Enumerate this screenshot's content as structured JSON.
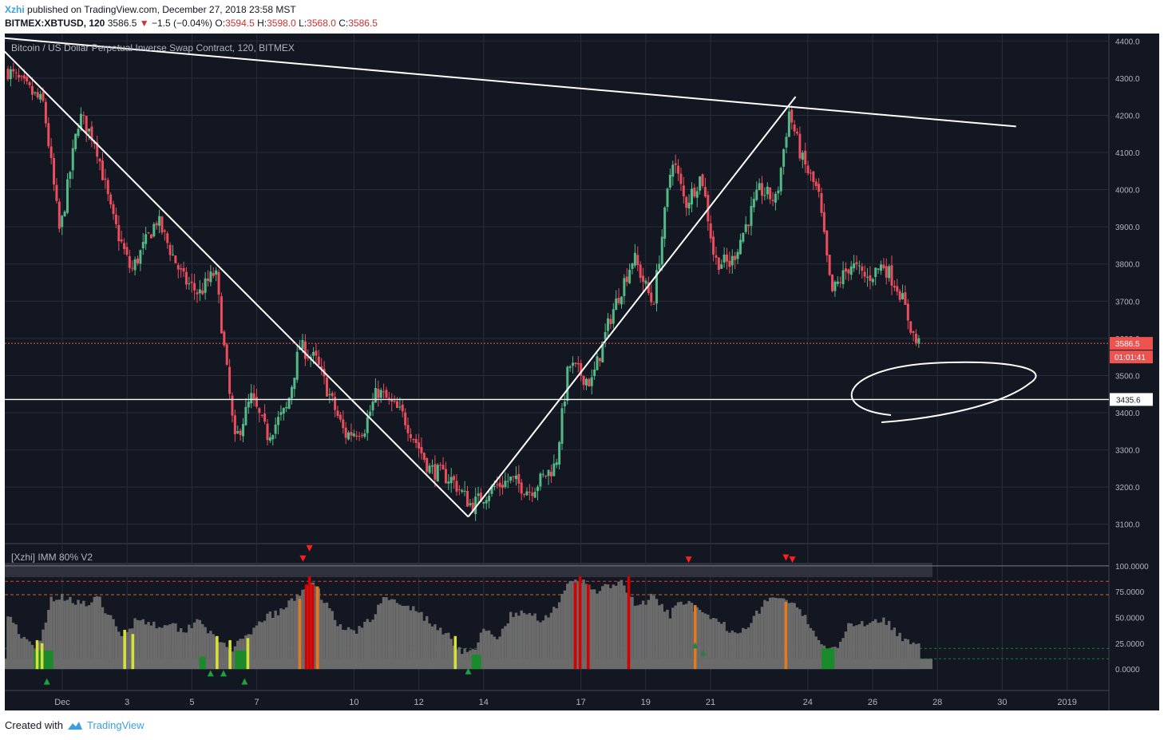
{
  "header": {
    "author": "Xzhi",
    "published_text": "published on TradingView.com, December 27, 2018 23:58 MST",
    "symbol": "BITMEX:XBTUSD, 120",
    "last": "3586.5",
    "change_arrow": "▼",
    "change": "−1.5 (−0.04%)",
    "o_label": "O:",
    "o_value": "3594.5",
    "h_label": "H:",
    "h_value": "3598.0",
    "l_label": "L:",
    "l_value": "3568.0",
    "c_label": "C:",
    "c_value": "3586.5"
  },
  "footer": {
    "created_with": "Created with",
    "brand": "TradingView",
    "logo_icon": "tradingview-cloud-icon"
  },
  "colors": {
    "background": "#131722",
    "grid": "#2a2e39",
    "up": "#53b987",
    "down": "#eb4d5c",
    "axis_text": "#b2b5be",
    "price_tag": "#ef5350",
    "indicator_gray": "#6b6b6b",
    "bar_yellow": "#d7e03b",
    "bar_orange": "#e37a1f",
    "bar_red": "#d50000",
    "bar_green": "#1b8a2a"
  },
  "chart_data": [
    {
      "type": "candlestick",
      "title": "Bitcoin / US Dollar Perpetual Inverse Swap Contract, 120, BITMEX",
      "xlabel": "",
      "ylabel": "",
      "x_ticks": [
        "Dec",
        "3",
        "5",
        "7",
        "10",
        "12",
        "14",
        "17",
        "19",
        "21",
        "24",
        "26",
        "28",
        "30",
        "2019"
      ],
      "y_ticks": [
        "4400.0",
        "4300.0",
        "4200.0",
        "4100.0",
        "4000.0",
        "3900.0",
        "3800.0",
        "3700.0",
        "3600.0",
        "3500.0",
        "3400.0",
        "3300.0",
        "3200.0",
        "3100.0"
      ],
      "ylim": [
        3050,
        4420
      ],
      "grid": true,
      "current_price_label": "3586.5",
      "countdown_label": "01:01:41",
      "horizontal_level": 3435.6,
      "horizontal_level_label": "3435.6",
      "anchors": [
        {
          "d": 0.0,
          "p": 4320
        },
        {
          "d": 1.1,
          "p": 4230
        },
        {
          "d": 1.6,
          "p": 3880
        },
        {
          "d": 2.2,
          "p": 4200
        },
        {
          "d": 2.7,
          "p": 4130
        },
        {
          "d": 3.2,
          "p": 3930
        },
        {
          "d": 3.8,
          "p": 3780
        },
        {
          "d": 4.6,
          "p": 3920
        },
        {
          "d": 5.4,
          "p": 3760
        },
        {
          "d": 5.9,
          "p": 3720
        },
        {
          "d": 6.4,
          "p": 3780
        },
        {
          "d": 7.0,
          "p": 3320
        },
        {
          "d": 7.5,
          "p": 3440
        },
        {
          "d": 8.0,
          "p": 3340
        },
        {
          "d": 8.6,
          "p": 3410
        },
        {
          "d": 9.0,
          "p": 3580
        },
        {
          "d": 9.5,
          "p": 3540
        },
        {
          "d": 10.4,
          "p": 3340
        },
        {
          "d": 11.0,
          "p": 3360
        },
        {
          "d": 11.4,
          "p": 3460
        },
        {
          "d": 12.2,
          "p": 3390
        },
        {
          "d": 13.0,
          "p": 3250
        },
        {
          "d": 13.7,
          "p": 3220
        },
        {
          "d": 14.3,
          "p": 3150
        },
        {
          "d": 15.0,
          "p": 3200
        },
        {
          "d": 15.5,
          "p": 3220
        },
        {
          "d": 16.1,
          "p": 3190
        },
        {
          "d": 16.9,
          "p": 3260
        },
        {
          "d": 17.3,
          "p": 3530
        },
        {
          "d": 18.0,
          "p": 3480
        },
        {
          "d": 18.6,
          "p": 3660
        },
        {
          "d": 19.3,
          "p": 3820
        },
        {
          "d": 19.9,
          "p": 3690
        },
        {
          "d": 20.5,
          "p": 4090
        },
        {
          "d": 20.9,
          "p": 3960
        },
        {
          "d": 21.4,
          "p": 4040
        },
        {
          "d": 21.8,
          "p": 3810
        },
        {
          "d": 22.3,
          "p": 3800
        },
        {
          "d": 22.7,
          "p": 3890
        },
        {
          "d": 23.2,
          "p": 4000
        },
        {
          "d": 23.7,
          "p": 3970
        },
        {
          "d": 24.1,
          "p": 4210
        },
        {
          "d": 24.5,
          "p": 4080
        },
        {
          "d": 25.0,
          "p": 3990
        },
        {
          "d": 25.4,
          "p": 3720
        },
        {
          "d": 26.0,
          "p": 3800
        },
        {
          "d": 26.5,
          "p": 3760
        },
        {
          "d": 27.0,
          "p": 3800
        },
        {
          "d": 27.5,
          "p": 3730
        },
        {
          "d": 28.0,
          "p": 3590
        },
        {
          "d": 28.1,
          "p": 3586.5
        }
      ],
      "trendlines": [
        {
          "d1": -0.4,
          "p1": 4410,
          "d2": 31.1,
          "p2": 4170
        },
        {
          "d1": -0.2,
          "p1": 4380,
          "d2": 14.2,
          "p2": 3120
        },
        {
          "d1": 14.2,
          "p1": 3120,
          "d2": 24.3,
          "p2": 4250
        }
      ]
    },
    {
      "type": "area",
      "title": "[Xzhi] IMM 80% V2",
      "y_ticks": [
        "100.0000",
        "75.0000",
        "50.0000",
        "25.0000",
        "0.0000"
      ],
      "ylim": [
        -20,
        120
      ],
      "levels": [
        100,
        85,
        72,
        20,
        10
      ],
      "anchors": [
        {
          "d": 0.0,
          "v": 55
        },
        {
          "d": 0.5,
          "v": 28
        },
        {
          "d": 0.8,
          "v": 20
        },
        {
          "d": 1.0,
          "v": 25
        },
        {
          "d": 1.3,
          "v": 68
        },
        {
          "d": 1.8,
          "v": 70
        },
        {
          "d": 2.4,
          "v": 62
        },
        {
          "d": 2.8,
          "v": 68
        },
        {
          "d": 3.2,
          "v": 48
        },
        {
          "d": 3.5,
          "v": 30
        },
        {
          "d": 4.0,
          "v": 50
        },
        {
          "d": 4.6,
          "v": 42
        },
        {
          "d": 5.0,
          "v": 46
        },
        {
          "d": 5.4,
          "v": 36
        },
        {
          "d": 5.9,
          "v": 50
        },
        {
          "d": 6.4,
          "v": 28
        },
        {
          "d": 6.9,
          "v": 20
        },
        {
          "d": 7.4,
          "v": 30
        },
        {
          "d": 7.9,
          "v": 50
        },
        {
          "d": 8.4,
          "v": 55
        },
        {
          "d": 8.9,
          "v": 70
        },
        {
          "d": 9.3,
          "v": 85
        },
        {
          "d": 9.8,
          "v": 66
        },
        {
          "d": 10.3,
          "v": 38
        },
        {
          "d": 10.8,
          "v": 38
        },
        {
          "d": 11.3,
          "v": 50
        },
        {
          "d": 11.6,
          "v": 74
        },
        {
          "d": 12.1,
          "v": 60
        },
        {
          "d": 12.6,
          "v": 58
        },
        {
          "d": 13.1,
          "v": 42
        },
        {
          "d": 13.5,
          "v": 36
        },
        {
          "d": 13.9,
          "v": 20
        },
        {
          "d": 14.3,
          "v": 15
        },
        {
          "d": 14.7,
          "v": 38
        },
        {
          "d": 15.1,
          "v": 28
        },
        {
          "d": 15.5,
          "v": 52
        },
        {
          "d": 16.1,
          "v": 54
        },
        {
          "d": 16.5,
          "v": 48
        },
        {
          "d": 16.9,
          "v": 60
        },
        {
          "d": 17.2,
          "v": 80
        },
        {
          "d": 17.7,
          "v": 85
        },
        {
          "d": 18.2,
          "v": 76
        },
        {
          "d": 18.9,
          "v": 84
        },
        {
          "d": 19.4,
          "v": 60
        },
        {
          "d": 19.9,
          "v": 70
        },
        {
          "d": 20.4,
          "v": 52
        },
        {
          "d": 20.9,
          "v": 68
        },
        {
          "d": 21.4,
          "v": 52
        },
        {
          "d": 21.9,
          "v": 46
        },
        {
          "d": 22.4,
          "v": 36
        },
        {
          "d": 22.9,
          "v": 44
        },
        {
          "d": 23.4,
          "v": 68
        },
        {
          "d": 24.0,
          "v": 68
        },
        {
          "d": 24.4,
          "v": 56
        },
        {
          "d": 24.8,
          "v": 42
        },
        {
          "d": 25.2,
          "v": 20
        },
        {
          "d": 25.6,
          "v": 24
        },
        {
          "d": 26.0,
          "v": 44
        },
        {
          "d": 26.5,
          "v": 45
        },
        {
          "d": 27.0,
          "v": 50
        },
        {
          "d": 27.5,
          "v": 32
        },
        {
          "d": 28.0,
          "v": 26
        },
        {
          "d": 28.1,
          "v": 25
        }
      ],
      "highlight_bars": [
        {
          "d": 0.9,
          "c": "yellow",
          "v": 28
        },
        {
          "d": 1.05,
          "c": "yellow",
          "v": 25
        },
        {
          "d": 3.6,
          "c": "yellow",
          "v": 38
        },
        {
          "d": 3.85,
          "c": "yellow",
          "v": 34
        },
        {
          "d": 6.45,
          "c": "yellow",
          "v": 32
        },
        {
          "d": 6.85,
          "c": "yellow",
          "v": 28
        },
        {
          "d": 7.4,
          "c": "yellow",
          "v": 30
        },
        {
          "d": 13.8,
          "c": "yellow",
          "v": 32
        },
        {
          "d": 9.0,
          "c": "orange",
          "v": 68
        },
        {
          "d": 9.55,
          "c": "orange",
          "v": 80
        },
        {
          "d": 9.2,
          "c": "red",
          "v": 82
        },
        {
          "d": 9.3,
          "c": "red",
          "v": 90
        },
        {
          "d": 9.4,
          "c": "red",
          "v": 82
        },
        {
          "d": 17.5,
          "c": "red",
          "v": 84
        },
        {
          "d": 17.65,
          "c": "red",
          "v": 90
        },
        {
          "d": 17.9,
          "c": "red",
          "v": 82
        },
        {
          "d": 19.15,
          "c": "red",
          "v": 90
        },
        {
          "d": 21.2,
          "c": "orange",
          "v": 62
        },
        {
          "d": 24.0,
          "c": "orange",
          "v": 65
        }
      ],
      "green_zones": [
        {
          "d1": 0.8,
          "d2": 1.4,
          "v": 18
        },
        {
          "d1": 5.9,
          "d2": 6.1,
          "v": 12
        },
        {
          "d1": 7.0,
          "d2": 7.4,
          "v": 18
        },
        {
          "d1": 14.3,
          "d2": 14.6,
          "v": 14
        },
        {
          "d1": 25.1,
          "d2": 25.5,
          "v": 20
        }
      ],
      "signals": [
        {
          "d": 9.1,
          "v": 107,
          "dir": "down"
        },
        {
          "d": 9.3,
          "v": 117,
          "dir": "down"
        },
        {
          "d": 21.0,
          "v": 106,
          "dir": "down"
        },
        {
          "d": 24.0,
          "v": 108,
          "dir": "down"
        },
        {
          "d": 24.2,
          "v": 106,
          "dir": "down"
        },
        {
          "d": 1.2,
          "v": -12,
          "dir": "up"
        },
        {
          "d": 6.25,
          "v": -4,
          "dir": "up"
        },
        {
          "d": 6.65,
          "v": -4,
          "dir": "up"
        },
        {
          "d": 7.3,
          "v": -12,
          "dir": "up"
        },
        {
          "d": 14.2,
          "v": -2,
          "dir": "up"
        },
        {
          "d": 21.2,
          "v": 23,
          "dir": "up-dim"
        },
        {
          "d": 21.45,
          "v": 16,
          "dir": "up-dim"
        }
      ]
    }
  ]
}
